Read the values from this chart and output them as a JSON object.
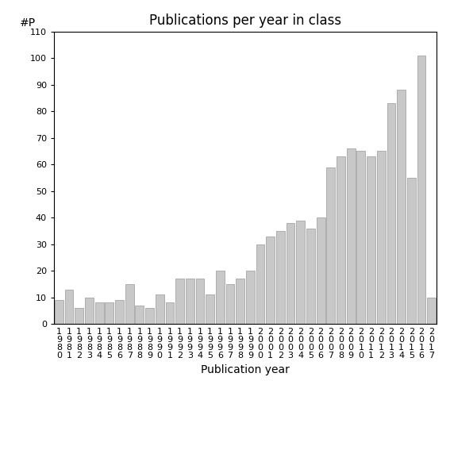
{
  "title": "Publications per year in class",
  "xlabel": "Publication year",
  "ylabel": "#P",
  "ylim": [
    0,
    110
  ],
  "yticks": [
    0,
    10,
    20,
    30,
    40,
    50,
    60,
    70,
    80,
    90,
    100,
    110
  ],
  "bar_color": "#c8c8c8",
  "bar_edgecolor": "#999999",
  "years": [
    "1980",
    "1981",
    "1982",
    "1983",
    "1984",
    "1985",
    "1986",
    "1987",
    "1988",
    "1989",
    "1990",
    "1991",
    "1992",
    "1993",
    "1994",
    "1995",
    "1996",
    "1997",
    "1998",
    "1999",
    "2000",
    "2001",
    "2002",
    "2003",
    "2004",
    "2005",
    "2006",
    "2007",
    "2008",
    "2009",
    "2010",
    "2011",
    "2012",
    "2013",
    "2014",
    "2015",
    "2016",
    "2017"
  ],
  "values": [
    9,
    13,
    6,
    10,
    8,
    8,
    9,
    15,
    7,
    6,
    11,
    8,
    17,
    17,
    17,
    11,
    20,
    15,
    17,
    20,
    30,
    33,
    35,
    38,
    39,
    36,
    40,
    59,
    63,
    66,
    65,
    63,
    65,
    83,
    88,
    55,
    101,
    10
  ],
  "tick_labels": [
    "1\n9\n8\n0",
    "1\n9\n8\n1",
    "1\n9\n8\n2",
    "1\n9\n8\n3",
    "1\n9\n8\n4",
    "1\n9\n8\n5",
    "1\n9\n8\n6",
    "1\n9\n8\n7",
    "1\n9\n8\n8",
    "1\n9\n8\n9",
    "1\n9\n9\n0",
    "1\n9\n9\n1",
    "1\n9\n9\n2",
    "1\n9\n9\n3",
    "1\n9\n9\n4",
    "1\n9\n9\n5",
    "1\n9\n9\n6",
    "1\n9\n9\n7",
    "1\n9\n9\n8",
    "1\n9\n9\n9",
    "2\n0\n0\n0",
    "2\n0\n0\n1",
    "2\n0\n0\n2",
    "2\n0\n0\n3",
    "2\n0\n0\n4",
    "2\n0\n0\n5",
    "2\n0\n0\n6",
    "2\n0\n0\n7",
    "2\n0\n0\n8",
    "2\n0\n0\n9",
    "2\n0\n1\n0",
    "2\n0\n1\n1",
    "2\n0\n1\n2",
    "2\n0\n1\n3",
    "2\n0\n1\n4",
    "2\n0\n1\n5",
    "2\n0\n1\n6",
    "2\n0\n1\n7"
  ],
  "background_color": "#ffffff",
  "title_fontsize": 12,
  "label_fontsize": 10,
  "tick_fontsize": 8,
  "ylabel_fontsize": 10
}
